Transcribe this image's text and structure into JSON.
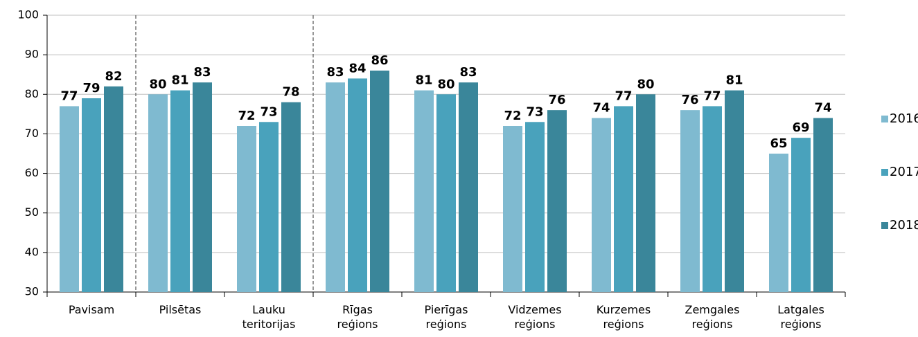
{
  "chart_data": {
    "type": "bar",
    "categories": [
      "Pavisam",
      "Pilsētas",
      "Lauku teritorijas",
      "Rīgas reģions",
      "Pierīgas reģions",
      "Vidzemes reģions",
      "Kurzemes reģions",
      "Zemgales reģions",
      "Latgales reģions"
    ],
    "series": [
      {
        "name": "2016",
        "color": "#7fbad0",
        "values": [
          77,
          80,
          72,
          83,
          81,
          72,
          74,
          76,
          65
        ]
      },
      {
        "name": "2017",
        "color": "#49a2bc",
        "values": [
          79,
          81,
          73,
          84,
          80,
          73,
          77,
          77,
          69
        ]
      },
      {
        "name": "2018",
        "color": "#3a869a",
        "values": [
          82,
          83,
          78,
          86,
          83,
          76,
          80,
          81,
          74
        ]
      }
    ],
    "ylim": [
      30,
      100
    ],
    "yticks": [
      30,
      40,
      50,
      60,
      70,
      80,
      90,
      100
    ],
    "grid": true,
    "legend": "right"
  }
}
